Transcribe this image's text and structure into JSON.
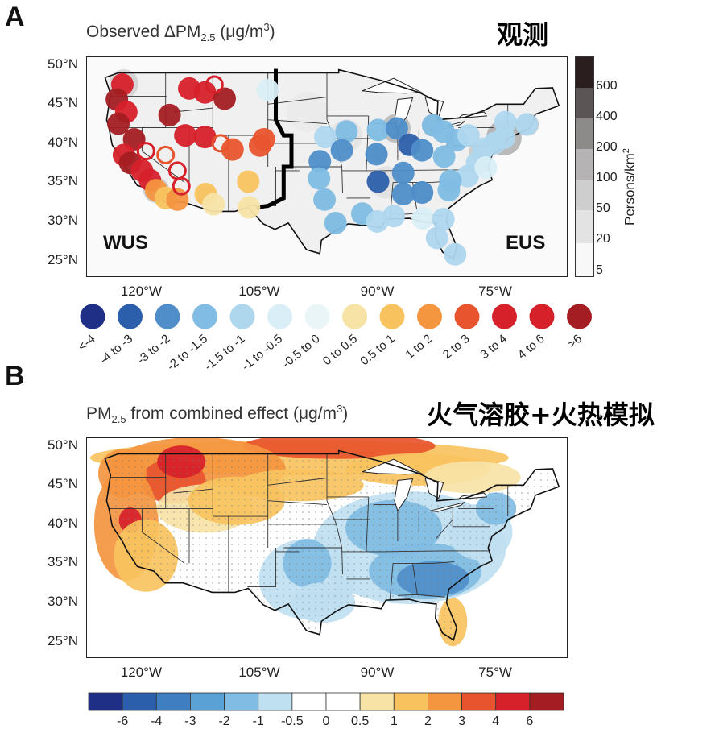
{
  "panel_a": {
    "letter": "A",
    "title_prefix": "Observed ΔPM",
    "title_sub": "2.5",
    "title_suffix": " (μg/m",
    "title_sup": "3",
    "title_end": ")",
    "zh_title": "观测",
    "region_west": "WUS",
    "region_east": "EUS",
    "density_ticks": [
      "600",
      "400",
      "200",
      "100",
      "50",
      "20",
      "5"
    ],
    "density_label": "Persons/km",
    "density_label_sup": "2"
  },
  "panel_b": {
    "letter": "B",
    "title_prefix": "PM",
    "title_sub": "2.5",
    "title_suffix": " from combined effect (μg/m",
    "title_sup": "3",
    "title_end": ")",
    "zh_title": "火气溶胶+火热模拟"
  },
  "colors": {
    "div": [
      "#1f2f86",
      "#2c5fab",
      "#4f8ec9",
      "#80bce3",
      "#aed7ee",
      "#d9eef6",
      "#ffffff",
      "#f7e3a6",
      "#f8c35f",
      "#f49540",
      "#e8542d",
      "#d6202a",
      "#a31d22"
    ]
  },
  "chart_data": [
    {
      "type": "scatter",
      "title": "Observed ΔPM2.5 (μg/m3)",
      "x_axis": {
        "ticks": [
          "120°W",
          "105°W",
          "90°W",
          "75°W"
        ],
        "range": [
          -127,
          -66
        ]
      },
      "y_axis": {
        "ticks": [
          "25°N",
          "30°N",
          "35°N",
          "40°N",
          "45°N",
          "50°N"
        ],
        "range": [
          23,
          51
        ]
      },
      "regions": [
        "WUS",
        "EUS"
      ],
      "legend_bins": [
        "<-4",
        "-4 to -3",
        "-3 to -2",
        "-2 to -1.5",
        "-1.5 to -1",
        "-1 to -0.5",
        "-0.5 to 0",
        "0 to 0.5",
        "0.5 to 1",
        "1 to 2",
        "2 to 3",
        "3 to 4",
        "4 to 6",
        ">6"
      ],
      "legend_colors": [
        "#1f2f86",
        "#2c5fab",
        "#4f8ec9",
        "#80bce3",
        "#aed7ee",
        "#d9eef6",
        "#eaf5f7",
        "#f7e3a6",
        "#f8c35f",
        "#f49540",
        "#e8542d",
        "#d6202a",
        "#d6202a",
        "#a31d22"
      ],
      "density_colorbar": {
        "label": "Persons/km2",
        "ticks": [
          "600",
          "400",
          "200",
          "100",
          "50",
          "20",
          "5"
        ]
      },
      "sites": [
        {
          "lon": -122.5,
          "lat": 47.5,
          "bin": 12
        },
        {
          "lon": -123.2,
          "lat": 45.6,
          "bin": 13
        },
        {
          "lon": -122.0,
          "lat": 44.0,
          "bin": 12
        },
        {
          "lon": -123.0,
          "lat": 42.5,
          "bin": 13
        },
        {
          "lon": -121.0,
          "lat": 40.5,
          "bin": 13
        },
        {
          "lon": -122.3,
          "lat": 38.5,
          "bin": 12
        },
        {
          "lon": -121.5,
          "lat": 37.5,
          "bin": 13
        },
        {
          "lon": -120.0,
          "lat": 36.5,
          "bin": 11
        },
        {
          "lon": -119.0,
          "lat": 35.3,
          "bin": 12
        },
        {
          "lon": -118.2,
          "lat": 34.0,
          "bin": 9
        },
        {
          "lon": -117.0,
          "lat": 33.0,
          "bin": 8
        },
        {
          "lon": -115.5,
          "lat": 32.8,
          "bin": 9
        },
        {
          "lon": -116.5,
          "lat": 43.6,
          "bin": 13
        },
        {
          "lon": -114.0,
          "lat": 47.0,
          "bin": 12
        },
        {
          "lon": -112.0,
          "lat": 46.5,
          "bin": 12
        },
        {
          "lon": -114.5,
          "lat": 41.0,
          "bin": 12
        },
        {
          "lon": -112.0,
          "lat": 40.8,
          "bin": 12
        },
        {
          "lon": -109.5,
          "lat": 45.7,
          "bin": 13
        },
        {
          "lon": -108.5,
          "lat": 39.2,
          "bin": 10
        },
        {
          "lon": -105.0,
          "lat": 39.7,
          "bin": 10
        },
        {
          "lon": -104.5,
          "lat": 40.5,
          "bin": 10
        },
        {
          "lon": -106.5,
          "lat": 35.1,
          "bin": 8
        },
        {
          "lon": -111.9,
          "lat": 33.5,
          "bin": 8
        },
        {
          "lon": -110.9,
          "lat": 32.2,
          "bin": 7
        },
        {
          "lon": -106.4,
          "lat": 31.8,
          "bin": 7
        },
        {
          "lon": -104.0,
          "lat": 46.8,
          "bin": 5
        },
        {
          "lon": -96.7,
          "lat": 40.8,
          "bin": 4
        },
        {
          "lon": -94.0,
          "lat": 41.5,
          "bin": 3
        },
        {
          "lon": -90.0,
          "lat": 41.7,
          "bin": 3
        },
        {
          "lon": -87.6,
          "lat": 41.9,
          "bin": 2
        },
        {
          "lon": -86.0,
          "lat": 39.8,
          "bin": 1
        },
        {
          "lon": -84.4,
          "lat": 39.1,
          "bin": 2
        },
        {
          "lon": -83.0,
          "lat": 42.3,
          "bin": 3
        },
        {
          "lon": -81.7,
          "lat": 41.5,
          "bin": 3
        },
        {
          "lon": -80.0,
          "lat": 40.4,
          "bin": 3
        },
        {
          "lon": -78.5,
          "lat": 41.0,
          "bin": 4
        },
        {
          "lon": -76.6,
          "lat": 39.3,
          "bin": 4
        },
        {
          "lon": -75.2,
          "lat": 40.0,
          "bin": 4
        },
        {
          "lon": -74.0,
          "lat": 40.7,
          "bin": 4
        },
        {
          "lon": -71.1,
          "lat": 42.4,
          "bin": 4
        },
        {
          "lon": -73.8,
          "lat": 42.7,
          "bin": 4
        },
        {
          "lon": -97.4,
          "lat": 37.7,
          "bin": 2
        },
        {
          "lon": -94.6,
          "lat": 39.1,
          "bin": 2
        },
        {
          "lon": -90.2,
          "lat": 38.6,
          "bin": 2
        },
        {
          "lon": -86.8,
          "lat": 36.2,
          "bin": 2
        },
        {
          "lon": -84.4,
          "lat": 33.7,
          "bin": 2
        },
        {
          "lon": -86.8,
          "lat": 33.5,
          "bin": 2
        },
        {
          "lon": -90.0,
          "lat": 35.1,
          "bin": 1
        },
        {
          "lon": -97.5,
          "lat": 35.5,
          "bin": 3
        },
        {
          "lon": -96.8,
          "lat": 32.8,
          "bin": 3
        },
        {
          "lon": -95.4,
          "lat": 29.8,
          "bin": 3
        },
        {
          "lon": -92.0,
          "lat": 31.0,
          "bin": 3
        },
        {
          "lon": -90.1,
          "lat": 30.0,
          "bin": 4
        },
        {
          "lon": -88.0,
          "lat": 30.7,
          "bin": 4
        },
        {
          "lon": -84.3,
          "lat": 30.4,
          "bin": 5
        },
        {
          "lon": -81.7,
          "lat": 30.3,
          "bin": 4
        },
        {
          "lon": -82.5,
          "lat": 27.9,
          "bin": 4
        },
        {
          "lon": -80.2,
          "lat": 25.8,
          "bin": 4
        },
        {
          "lon": -81.0,
          "lat": 34.0,
          "bin": 3
        },
        {
          "lon": -78.6,
          "lat": 35.8,
          "bin": 4
        },
        {
          "lon": -77.4,
          "lat": 37.5,
          "bin": 4
        },
        {
          "lon": -81.6,
          "lat": 38.3,
          "bin": 3
        },
        {
          "lon": -80.8,
          "lat": 35.2,
          "bin": 3
        },
        {
          "lon": -76.3,
          "lat": 36.9,
          "bin": 5
        }
      ]
    },
    {
      "type": "heatmap",
      "title": "PM2.5 from combined effect (μg/m3)",
      "x_axis": {
        "ticks": [
          "120°W",
          "105°W",
          "90°W",
          "75°W"
        ],
        "range": [
          -127,
          -66
        ]
      },
      "y_axis": {
        "ticks": [
          "25°N",
          "30°N",
          "35°N",
          "40°N",
          "45°N",
          "50°N"
        ],
        "range": [
          23,
          51
        ]
      },
      "colorbar_ticks": [
        "-6",
        "-4",
        "-3",
        "-2",
        "-1",
        "-0.5",
        "0",
        "0.5",
        "1",
        "2",
        "3",
        "4",
        "6"
      ],
      "colorbar_colors": [
        "#1f2f86",
        "#2c5fab",
        "#3f7fc1",
        "#5aa2d6",
        "#80bce3",
        "#bfe0f1",
        "#ffffff",
        "#ffffff",
        "#f7e3a6",
        "#f8c35f",
        "#f49540",
        "#e8542d",
        "#d6202a",
        "#a31d22"
      ]
    }
  ]
}
